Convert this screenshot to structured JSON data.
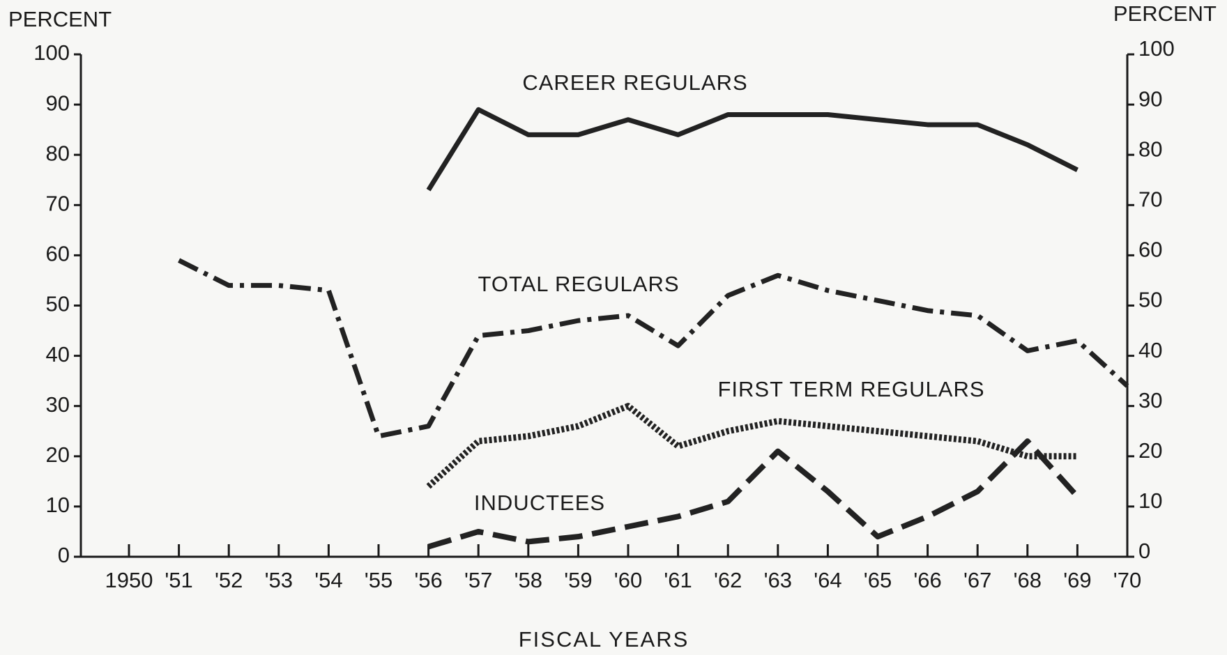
{
  "chart_data": {
    "type": "line",
    "y_label": "PERCENT",
    "y2_label": "PERCENT",
    "x_label": "FISCAL YEARS",
    "categories": [
      "1950",
      "'51",
      "'52",
      "'53",
      "'54",
      "'55",
      "'56",
      "'57",
      "'58",
      "'59",
      "'60",
      "'61",
      "'62",
      "'63",
      "'64",
      "'65",
      "'66",
      "'67",
      "'68",
      "'69",
      "'70"
    ],
    "ylim": [
      0,
      100
    ],
    "yticks": [
      0,
      10,
      20,
      30,
      40,
      50,
      60,
      70,
      80,
      90,
      100
    ],
    "y2lim": [
      0,
      100
    ],
    "y2ticks": [
      0,
      10,
      20,
      30,
      40,
      50,
      60,
      70,
      80,
      90,
      100
    ],
    "grid": false,
    "series": [
      {
        "name": "CAREER REGULARS",
        "color": "#222222",
        "style": "solid",
        "values": [
          null,
          null,
          null,
          null,
          null,
          null,
          73,
          89,
          84,
          84,
          87,
          84,
          88,
          88,
          88,
          87,
          86,
          86,
          82,
          77,
          null
        ]
      },
      {
        "name": "TOTAL REGULARS",
        "color": "#222222",
        "style": "dashdot",
        "values": [
          null,
          59,
          54,
          54,
          53,
          24,
          26,
          44,
          45,
          47,
          48,
          42,
          52,
          56,
          53,
          51,
          49,
          48,
          41,
          43,
          34
        ]
      },
      {
        "name": "FIRST TERM REGULARS",
        "color": "#222222",
        "style": "dotted",
        "values": [
          null,
          null,
          null,
          null,
          null,
          null,
          14,
          23,
          24,
          26,
          30,
          22,
          25,
          27,
          26,
          25,
          24,
          23,
          20,
          20,
          null
        ]
      },
      {
        "name": "INDUCTEES",
        "color": "#222222",
        "style": "dashed",
        "values": [
          null,
          null,
          null,
          null,
          null,
          null,
          2,
          5,
          3,
          4,
          6,
          8,
          11,
          21,
          13,
          4,
          8,
          13,
          23,
          12,
          null
        ]
      }
    ]
  }
}
